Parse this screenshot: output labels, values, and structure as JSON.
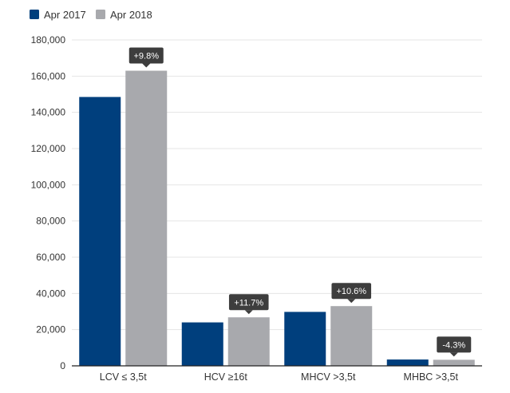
{
  "chart_data": {
    "type": "bar",
    "title": "",
    "xlabel": "",
    "ylabel": "",
    "categories": [
      "LCV ≤ 3,5t",
      "HCV ≥16t",
      "MHCV >3,5t",
      "MHBC >3,5t"
    ],
    "series": [
      {
        "name": "Apr 2017",
        "color": "#003f7d",
        "values": [
          148500,
          24000,
          29800,
          3500
        ]
      },
      {
        "name": "Apr 2018",
        "color": "#a8a9ad",
        "values": [
          163000,
          26800,
          33000,
          3350
        ]
      }
    ],
    "annotations": [
      "+9.8%",
      "+11.7%",
      "+10.6%",
      "-4.3%"
    ],
    "ylim": [
      0,
      180000
    ],
    "yticks": [
      0,
      20000,
      40000,
      60000,
      80000,
      100000,
      120000,
      140000,
      160000,
      180000
    ],
    "ytick_labels": [
      "0",
      "20,000",
      "40,000",
      "60,000",
      "80,000",
      "100,000",
      "120,000",
      "140,000",
      "160,000",
      "180,000"
    ],
    "grid": true,
    "legend": "top-left",
    "callout_color": "#3d3d3d"
  }
}
